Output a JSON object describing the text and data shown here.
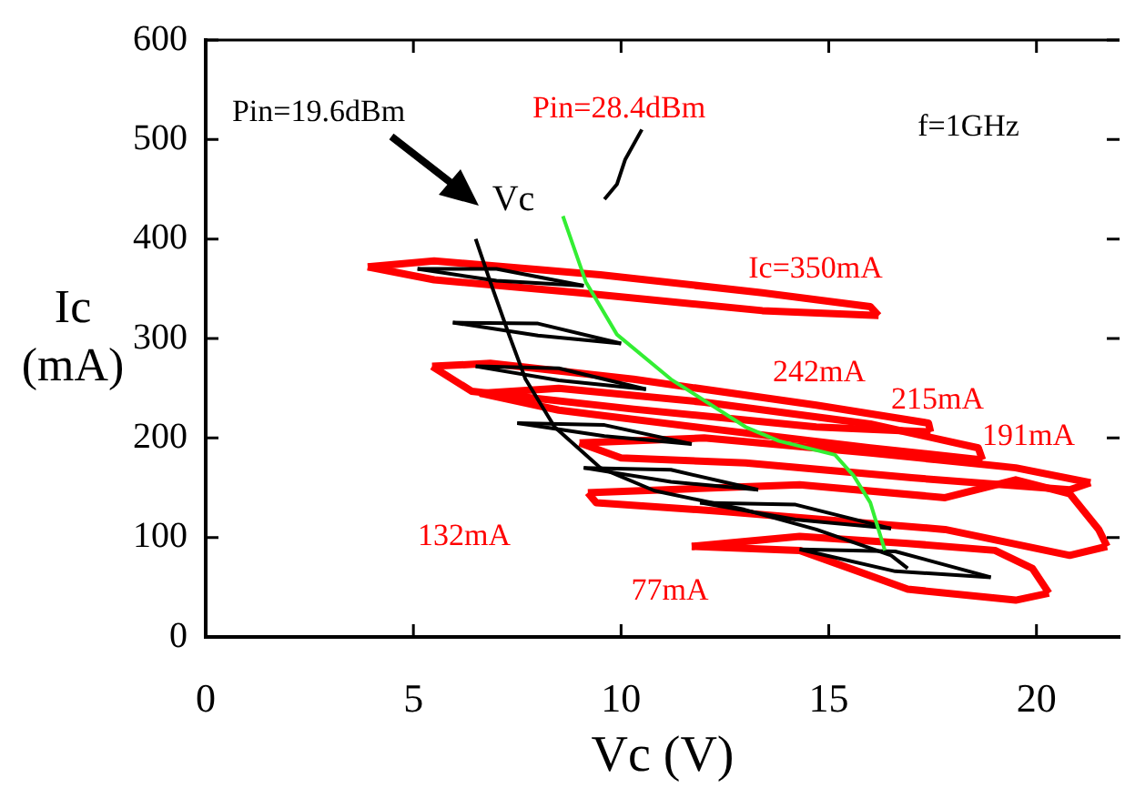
{
  "chart_data": {
    "type": "line",
    "xlabel": "Vc (V)",
    "ylabel": "Ic (mA)",
    "xlim": [
      0,
      22
    ],
    "ylim": [
      0,
      600
    ],
    "xticks": [
      0,
      5,
      10,
      15,
      20
    ],
    "yticks": [
      0,
      100,
      200,
      300,
      400,
      500,
      600
    ],
    "grid": false,
    "legend": false,
    "marker": "none",
    "line_style": "solid",
    "annotations": [
      "Pin=19.6dBm",
      "Pin=28.4dBm",
      "f=1GHz",
      "Vc",
      "Ic=350mA",
      "242mA",
      "215mA",
      "191mA",
      "132mA",
      "77mA"
    ],
    "series": [
      {
        "color": "#ff0000",
        "x": [
          3.9,
          5.5,
          9.5,
          13.4,
          16.0,
          16.2
        ],
        "values": [
          372,
          378,
          364,
          346,
          332,
          323
        ]
      },
      {
        "color": "#ff0000",
        "x": [
          3.9,
          5.5,
          9.0,
          13.4,
          16.2
        ],
        "values": [
          372,
          359,
          346,
          328,
          323
        ]
      },
      {
        "color": "#ff0000",
        "x": [
          5.45,
          6.85,
          10.3,
          14.7,
          17.4,
          17.45
        ],
        "values": [
          272,
          275,
          259,
          233,
          215,
          206
        ]
      },
      {
        "color": "#ff0000",
        "x": [
          5.45,
          6.4,
          10.3,
          14.7,
          17.45
        ],
        "values": [
          272,
          247,
          229,
          211,
          206
        ]
      },
      {
        "color": "#ff0000",
        "x": [
          6.6,
          8.5,
          12,
          16,
          18.6,
          18.7
        ],
        "values": [
          245,
          250,
          236,
          214,
          190,
          178
        ]
      },
      {
        "color": "#ff0000",
        "x": [
          6.6,
          8.5,
          12,
          16,
          18.7
        ],
        "values": [
          245,
          228,
          210,
          190,
          178
        ]
      },
      {
        "color": "#ff0000",
        "x": [
          9.0,
          12,
          16,
          19.5,
          21.3
        ],
        "values": [
          195,
          200,
          185,
          170,
          155
        ]
      },
      {
        "color": "#ff0000",
        "x": [
          9.0,
          10,
          13,
          17,
          20.8,
          21.3
        ],
        "values": [
          195,
          180,
          175,
          160,
          148,
          155
        ]
      },
      {
        "color": "#ff0000",
        "x": [
          9.2,
          14.3,
          17.8,
          19.5,
          20.8,
          21.5,
          21.7
        ],
        "values": [
          145,
          153,
          140,
          158,
          144,
          108,
          91
        ]
      },
      {
        "color": "#ff0000",
        "x": [
          9.2,
          9.4,
          12.5,
          17.8,
          20.8,
          21.7
        ],
        "values": [
          145,
          135,
          126,
          108,
          82,
          91
        ]
      },
      {
        "color": "#ff0000",
        "x": [
          11.7,
          14.3,
          16.9,
          19.0,
          19.9,
          20.3
        ],
        "values": [
          91,
          101,
          94,
          87,
          69,
          44
        ]
      },
      {
        "color": "#ff0000",
        "x": [
          11.7,
          14.3,
          16.9,
          19.5,
          20.3
        ],
        "values": [
          91,
          87,
          48,
          37,
          44
        ]
      },
      {
        "color": "#000000",
        "x": [
          5.1,
          7,
          9.1
        ],
        "values": [
          370,
          370,
          353
        ]
      },
      {
        "color": "#000000",
        "x": [
          5.1,
          7,
          9.1
        ],
        "values": [
          370,
          358,
          353
        ]
      },
      {
        "color": "#000000",
        "x": [
          5.95,
          8,
          10.0
        ],
        "values": [
          316,
          315,
          295
        ]
      },
      {
        "color": "#000000",
        "x": [
          5.95,
          8,
          10.0
        ],
        "values": [
          316,
          303,
          295
        ]
      },
      {
        "color": "#000000",
        "x": [
          6.5,
          8.5,
          10.6
        ],
        "values": [
          272,
          270,
          249
        ]
      },
      {
        "color": "#000000",
        "x": [
          6.5,
          8.5,
          10.6
        ],
        "values": [
          272,
          258,
          249
        ]
      },
      {
        "color": "#000000",
        "x": [
          7.5,
          9.6,
          11.7
        ],
        "values": [
          215,
          213,
          194
        ]
      },
      {
        "color": "#000000",
        "x": [
          7.5,
          9.6,
          11.7
        ],
        "values": [
          215,
          202,
          194
        ]
      },
      {
        "color": "#000000",
        "x": [
          9.1,
          11.2,
          13.3
        ],
        "values": [
          170,
          168,
          148
        ]
      },
      {
        "color": "#000000",
        "x": [
          9.1,
          11.2,
          13.3
        ],
        "values": [
          170,
          156,
          148
        ]
      },
      {
        "color": "#000000",
        "x": [
          11.9,
          14.2,
          16.5
        ],
        "values": [
          135,
          133,
          109
        ]
      },
      {
        "color": "#000000",
        "x": [
          11.9,
          14.2,
          16.5
        ],
        "values": [
          135,
          118,
          109
        ]
      },
      {
        "color": "#000000",
        "x": [
          14.3,
          16.6,
          18.9
        ],
        "values": [
          88,
          86,
          60
        ]
      },
      {
        "color": "#000000",
        "x": [
          14.3,
          16.6,
          18.9
        ],
        "values": [
          88,
          66,
          60
        ]
      },
      {
        "color": "#000000",
        "x": [
          6.5,
          6.85,
          7.3,
          7.7,
          8.4,
          9.5,
          10.8,
          12.97,
          14.7,
          16.5,
          16.9
        ],
        "values": [
          400,
          357,
          304,
          259,
          211,
          170,
          147,
          128,
          108,
          82,
          69
        ]
      },
      {
        "color": "#33ee33",
        "x": [
          8.6,
          9.15,
          9.9,
          11.2,
          13.0,
          13.8,
          15.15,
          15.6,
          16.0,
          16.35
        ],
        "values": [
          423,
          357,
          304,
          259,
          211,
          197,
          183,
          162,
          135,
          87
        ]
      },
      {
        "color": "#000000",
        "x": [
          9.6,
          9.7,
          9.9,
          10.1,
          10.5
        ],
        "values": [
          440,
          445,
          455,
          480,
          510
        ]
      }
    ]
  }
}
